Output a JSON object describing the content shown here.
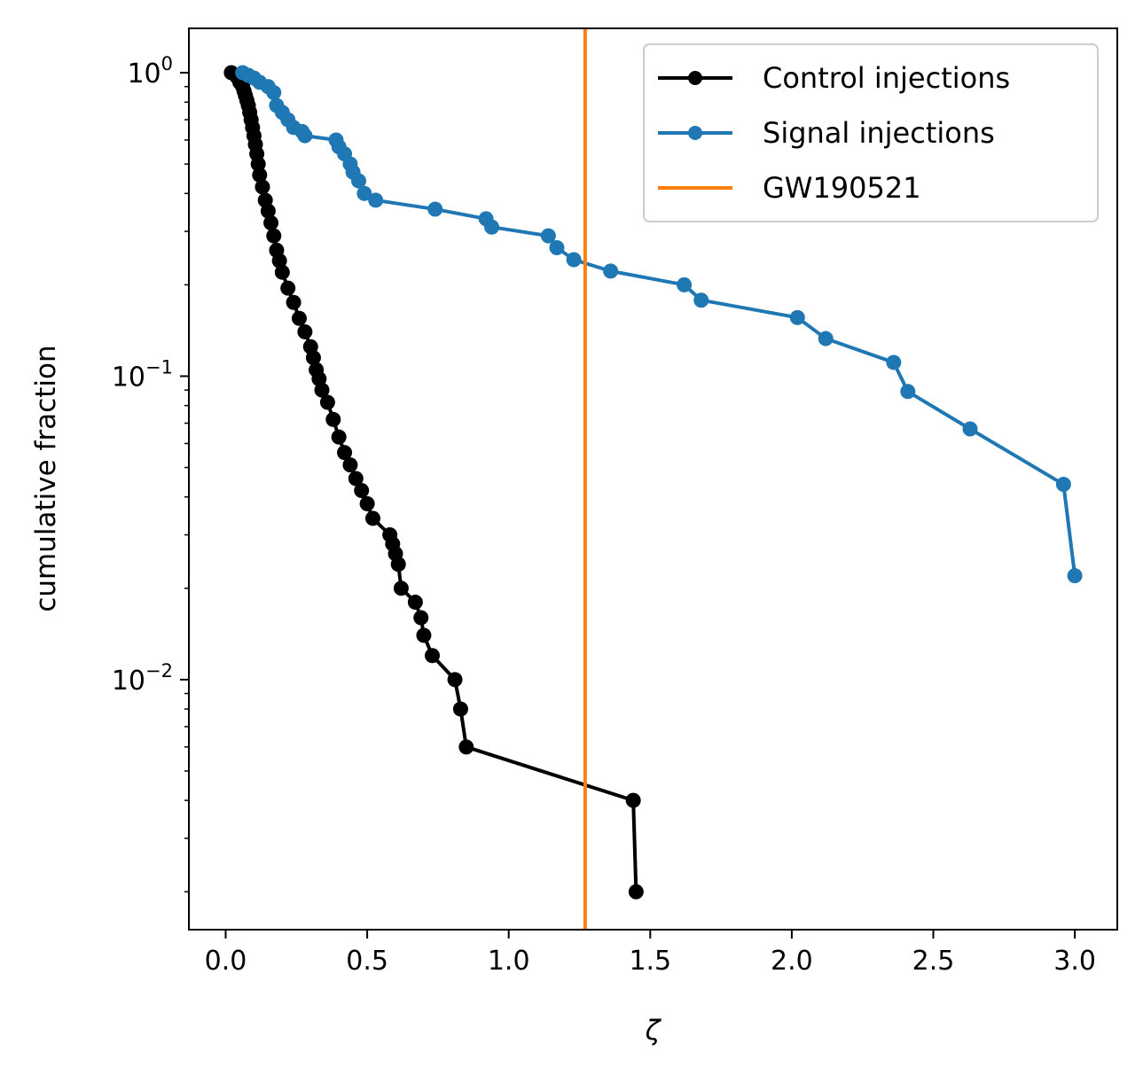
{
  "chart_data": {
    "type": "line",
    "title": "",
    "xlabel": "ζ",
    "ylabel": "cumulative fraction",
    "yscale": "log",
    "xlim": [
      -0.13,
      3.15
    ],
    "ylim": [
      0.0015,
      1.4
    ],
    "x_ticks": [
      0.0,
      0.5,
      1.0,
      1.5,
      2.0,
      2.5,
      3.0
    ],
    "x_tick_labels": [
      "0.0",
      "0.5",
      "1.0",
      "1.5",
      "2.0",
      "2.5",
      "3.0"
    ],
    "y_ticks": [
      {
        "value": 1,
        "base": "10",
        "exp": "0"
      },
      {
        "value": 0.1,
        "base": "10",
        "exp": "−1"
      },
      {
        "value": 0.01,
        "base": "10",
        "exp": "−2"
      }
    ],
    "legend_position": "top-right",
    "series": [
      {
        "name": "Control injections",
        "color": "#000000",
        "marker": "circle",
        "x": [
          0.02,
          0.04,
          0.05,
          0.06,
          0.065,
          0.07,
          0.075,
          0.08,
          0.085,
          0.09,
          0.095,
          0.1,
          0.105,
          0.11,
          0.115,
          0.12,
          0.13,
          0.14,
          0.15,
          0.16,
          0.17,
          0.18,
          0.19,
          0.2,
          0.22,
          0.24,
          0.26,
          0.28,
          0.3,
          0.31,
          0.32,
          0.33,
          0.34,
          0.36,
          0.38,
          0.4,
          0.42,
          0.44,
          0.46,
          0.48,
          0.5,
          0.52,
          0.58,
          0.59,
          0.6,
          0.61,
          0.62,
          0.67,
          0.69,
          0.7,
          0.73,
          0.81,
          0.83,
          0.85,
          1.44,
          1.45
        ],
        "y": [
          1.0,
          0.97,
          0.93,
          0.9,
          0.87,
          0.84,
          0.81,
          0.78,
          0.74,
          0.7,
          0.66,
          0.62,
          0.58,
          0.54,
          0.5,
          0.46,
          0.42,
          0.38,
          0.35,
          0.32,
          0.29,
          0.26,
          0.24,
          0.22,
          0.195,
          0.175,
          0.155,
          0.14,
          0.125,
          0.115,
          0.105,
          0.098,
          0.09,
          0.082,
          0.072,
          0.063,
          0.056,
          0.051,
          0.046,
          0.042,
          0.038,
          0.034,
          0.03,
          0.028,
          0.026,
          0.024,
          0.02,
          0.018,
          0.016,
          0.014,
          0.012,
          0.01,
          0.008,
          0.006,
          0.004,
          0.002
        ]
      },
      {
        "name": "Signal injections",
        "color": "#1f77b4",
        "marker": "circle",
        "x": [
          0.06,
          0.08,
          0.1,
          0.12,
          0.15,
          0.17,
          0.18,
          0.2,
          0.22,
          0.24,
          0.27,
          0.28,
          0.39,
          0.4,
          0.42,
          0.44,
          0.45,
          0.47,
          0.49,
          0.53,
          0.74,
          0.92,
          0.94,
          1.14,
          1.17,
          1.23,
          1.36,
          1.62,
          1.68,
          2.02,
          2.12,
          2.36,
          2.41,
          2.63,
          2.96,
          3.0
        ],
        "y": [
          1.0,
          0.98,
          0.96,
          0.93,
          0.9,
          0.86,
          0.78,
          0.74,
          0.7,
          0.66,
          0.64,
          0.62,
          0.6,
          0.57,
          0.54,
          0.5,
          0.47,
          0.44,
          0.4,
          0.38,
          0.355,
          0.33,
          0.31,
          0.29,
          0.265,
          0.242,
          0.222,
          0.2,
          0.178,
          0.156,
          0.133,
          0.111,
          0.089,
          0.067,
          0.044,
          0.022
        ]
      }
    ],
    "vlines": [
      {
        "name": "GW190521",
        "x": 1.27,
        "color": "#ff7f0e"
      }
    ]
  }
}
